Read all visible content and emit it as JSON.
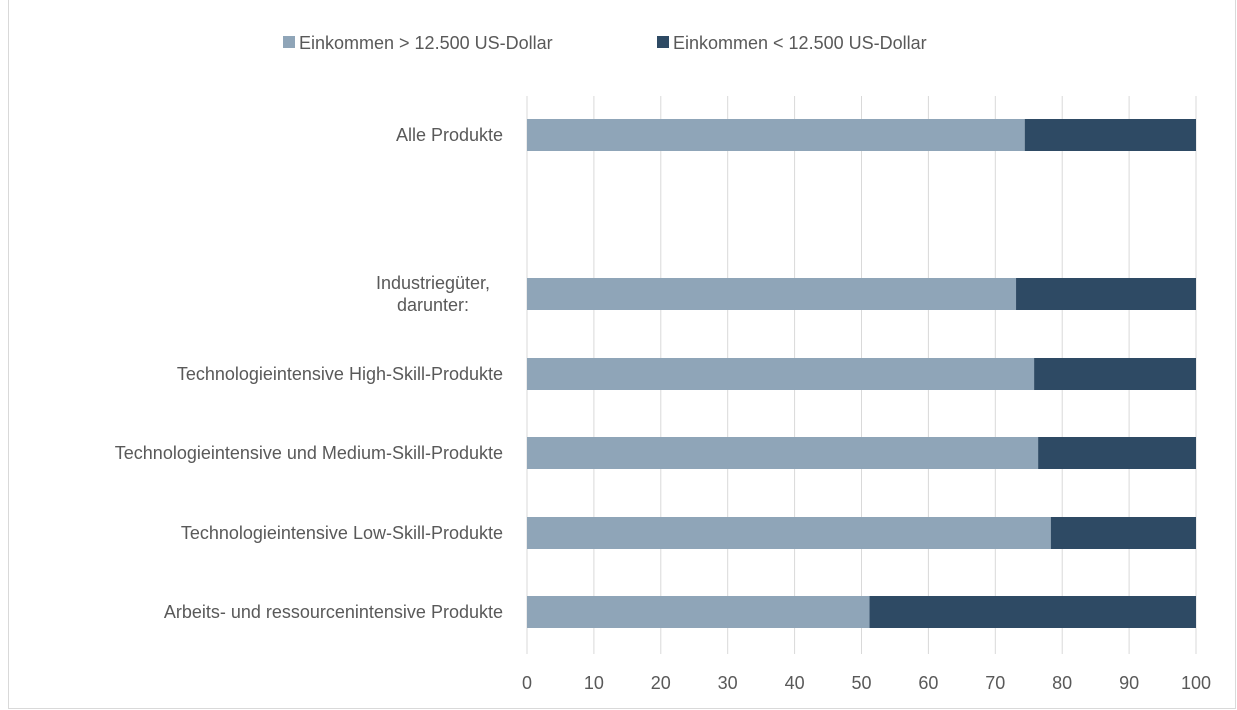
{
  "chart_data": {
    "type": "bar",
    "orientation": "horizontal",
    "stacked": true,
    "title": "",
    "xlabel": "",
    "ylabel": "",
    "xlim": [
      0,
      100
    ],
    "x_ticks": [
      "0",
      "10",
      "20",
      "30",
      "40",
      "50",
      "60",
      "70",
      "80",
      "90",
      "100"
    ],
    "grid": true,
    "legend_position": "top",
    "categories": [
      "Alle Produkte",
      "",
      "Industriegüter, darunter:",
      "Technologieintensive High-Skill-Produkte",
      "Technologieintensive und Medium-Skill-Produkte",
      "Technologieintensive Low-Skill-Produkte",
      "Arbeits- und ressourcenintensive Produkte"
    ],
    "category_lines": [
      [
        "Alle Produkte"
      ],
      [],
      [
        "Industriegüter,",
        "darunter:"
      ],
      [
        "Technologieintensive High-Skill-Produkte"
      ],
      [
        "Technologieintensive und Medium-Skill-Produkte"
      ],
      [
        "Technologieintensive Low-Skill-Produkte"
      ],
      [
        "Arbeits- und ressourcenintensive Produkte"
      ]
    ],
    "series": [
      {
        "name": "Einkommen > 12.500 US-Dollar",
        "color": "#8fa5b8",
        "values": [
          74.4,
          null,
          73.1,
          75.8,
          76.4,
          78.3,
          51.2
        ]
      },
      {
        "name": "Einkommen < 12.500 US-Dollar",
        "color": "#2e4a64",
        "values": [
          25.6,
          null,
          26.9,
          24.2,
          23.6,
          21.7,
          48.8
        ]
      }
    ]
  }
}
